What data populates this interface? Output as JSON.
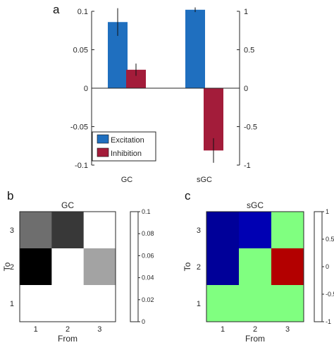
{
  "panels": {
    "a": "a",
    "b": "b",
    "c": "c"
  },
  "chart_data": [
    {
      "type": "bar",
      "panel": "a",
      "categories": [
        "GC",
        "sGC"
      ],
      "series": [
        {
          "name": "Excitation",
          "color": "#1f6fbf",
          "values": [
            0.086,
            0.102
          ],
          "errors": [
            0.018,
            0.003
          ]
        },
        {
          "name": "Inhibition",
          "color": "#a31c3a",
          "values": [
            0.024,
            -0.081
          ],
          "errors": [
            0.008,
            0.016
          ]
        }
      ],
      "ylim": [
        -0.1,
        0.1
      ],
      "yticks": [
        "0.1",
        "0.05",
        "0",
        "-0.05",
        "-0.1"
      ],
      "ytick_values": [
        0.1,
        0.05,
        0,
        -0.05,
        -0.1
      ],
      "y2lim": [
        -1,
        1
      ],
      "y2ticks": [
        "1",
        "0.5",
        "0",
        "-0.5",
        "-1"
      ],
      "y2tick_values": [
        1,
        0.5,
        0,
        -0.5,
        -1
      ],
      "legend_position": "bottom-left",
      "grid": false
    },
    {
      "type": "heatmap",
      "panel": "b",
      "title": "GC",
      "xlabel": "From",
      "ylabel": "To",
      "xticks": [
        "1",
        "2",
        "3"
      ],
      "yticks": [
        "3",
        "2",
        "1"
      ],
      "colormap": "gray-reversed",
      "clim": [
        0,
        0.1
      ],
      "colorbar_ticks": [
        "0.1",
        "0.08",
        "0.06",
        "0.04",
        "0.02",
        "0"
      ],
      "colorbar_tick_values": [
        0.1,
        0.08,
        0.06,
        0.04,
        0.02,
        0
      ],
      "rows": [
        [
          0.057,
          0.078,
          0.0
        ],
        [
          0.1,
          0.0,
          0.036
        ],
        [
          0.0,
          0.0,
          0.0
        ]
      ]
    },
    {
      "type": "heatmap",
      "panel": "c",
      "title": "sGC",
      "xlabel": "From",
      "ylabel": "To",
      "xticks": [
        "1",
        "2",
        "3"
      ],
      "yticks": [
        "3",
        "2",
        "1"
      ],
      "colormap": "jet-reversed",
      "clim": [
        -1,
        1
      ],
      "colorbar_ticks": [
        "1",
        "0.5",
        "0",
        "-0.5",
        "-1"
      ],
      "colorbar_tick_values": [
        1,
        0.5,
        0,
        -0.5,
        -1
      ],
      "rows": [
        [
          0.95,
          0.9,
          0.0
        ],
        [
          0.95,
          0.0,
          -0.9
        ],
        [
          0.0,
          0.0,
          0.0
        ]
      ]
    }
  ]
}
